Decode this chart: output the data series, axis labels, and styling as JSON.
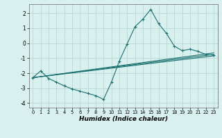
{
  "xlabel": "Humidex (Indice chaleur)",
  "background_color": "#d8f0ee",
  "grid_color": "#b8d8d4",
  "line_color": "#1a7070",
  "xlim": [
    -0.5,
    23.5
  ],
  "ylim": [
    -4.3,
    2.6
  ],
  "yticks": [
    -4,
    -3,
    -2,
    -1,
    0,
    1,
    2
  ],
  "xticks": [
    0,
    1,
    2,
    3,
    4,
    5,
    6,
    7,
    8,
    9,
    10,
    11,
    12,
    13,
    14,
    15,
    16,
    17,
    18,
    19,
    20,
    21,
    22,
    23
  ],
  "main_series": {
    "x": [
      0,
      1,
      2,
      3,
      4,
      5,
      6,
      7,
      8,
      9,
      10,
      11,
      12,
      13,
      14,
      15,
      16,
      17,
      18,
      19,
      20,
      21,
      22,
      23
    ],
    "y": [
      -2.3,
      -1.85,
      -2.35,
      -2.6,
      -2.85,
      -3.05,
      -3.2,
      -3.35,
      -3.5,
      -3.75,
      -2.6,
      -1.2,
      -0.05,
      1.1,
      1.6,
      2.25,
      1.3,
      0.65,
      -0.2,
      -0.5,
      -0.4,
      -0.55,
      -0.75,
      -0.8
    ]
  },
  "trend_lines": [
    {
      "x": [
        0,
        23
      ],
      "y": [
        -2.3,
        -0.75
      ]
    },
    {
      "x": [
        0,
        23
      ],
      "y": [
        -2.3,
        -0.85
      ]
    },
    {
      "x": [
        0,
        23
      ],
      "y": [
        -2.3,
        -0.65
      ]
    }
  ]
}
